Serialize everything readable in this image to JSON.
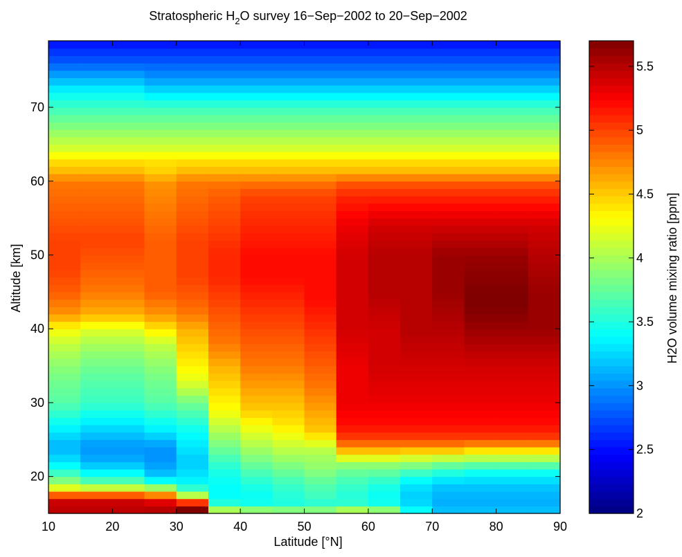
{
  "chart_data": {
    "type": "heatmap",
    "title_prefix": "Stratospheric H",
    "title_subscript": "2",
    "title_suffix": "O survey 16−Sep−2002 to 20−Sep−2002",
    "xlabel": "Latitude [°N]",
    "ylabel": "Altitude [km]",
    "colorbar_label": "H2O volume mixing ratio [ppm]",
    "colormap": "jet",
    "xlim": [
      10,
      90
    ],
    "ylim": [
      15,
      79
    ],
    "clim": [
      2.0,
      5.7
    ],
    "x_ticks": [
      10,
      20,
      30,
      40,
      50,
      60,
      70,
      80,
      90
    ],
    "y_ticks": [
      20,
      30,
      40,
      50,
      60,
      70
    ],
    "colorbar_ticks": [
      2,
      2.5,
      3,
      3.5,
      4,
      4.5,
      5,
      5.5
    ],
    "lat_bins": [
      [
        10,
        15
      ],
      [
        15,
        25
      ],
      [
        25,
        30
      ],
      [
        30,
        35
      ],
      [
        35,
        40
      ],
      [
        40,
        45
      ],
      [
        45,
        50
      ],
      [
        50,
        55
      ],
      [
        55,
        60
      ],
      [
        60,
        65
      ],
      [
        65,
        70
      ],
      [
        70,
        75
      ],
      [
        75,
        80
      ],
      [
        80,
        85
      ],
      [
        85,
        90
      ]
    ],
    "altitude_resolution_km": 1,
    "altitude_start_km": 15,
    "altitude_end_km": 79,
    "profiles_ppm": [
      {
        "altitudes": [
          15,
          17,
          18,
          19,
          20,
          22,
          24,
          26,
          28,
          30,
          33,
          35,
          38,
          40,
          42,
          45,
          48,
          52,
          56,
          60,
          61,
          63,
          64,
          66,
          68,
          70,
          72,
          74,
          76,
          78,
          79
        ],
        "values": [
          5.5,
          5.4,
          4.4,
          4.0,
          3.7,
          3.3,
          3.1,
          3.3,
          3.5,
          3.7,
          3.8,
          3.9,
          4.1,
          4.3,
          4.7,
          4.9,
          5.0,
          5.0,
          4.9,
          4.8,
          4.6,
          4.4,
          4.2,
          4.0,
          3.8,
          3.6,
          3.4,
          3.1,
          2.8,
          2.6,
          2.5
        ]
      },
      {
        "altitudes": [
          15,
          17,
          18,
          19,
          20,
          22,
          24,
          26,
          28,
          30,
          33,
          35,
          38,
          40,
          42,
          45,
          48,
          52,
          56,
          60,
          61,
          63,
          64,
          66,
          68,
          70,
          72,
          74,
          76,
          78,
          79
        ],
        "values": [
          5.5,
          5.4,
          4.4,
          3.8,
          3.5,
          3.1,
          3.0,
          3.2,
          3.4,
          3.6,
          3.7,
          3.8,
          4.0,
          4.2,
          4.6,
          4.8,
          4.9,
          5.0,
          4.9,
          4.8,
          4.6,
          4.4,
          4.2,
          4.0,
          3.8,
          3.6,
          3.4,
          3.1,
          2.8,
          2.6,
          2.5
        ]
      },
      {
        "altitudes": [
          15,
          16,
          17,
          18,
          19,
          20,
          22,
          24,
          26,
          28,
          30,
          33,
          35,
          38,
          40,
          42,
          45,
          48,
          52,
          56,
          60,
          61,
          63,
          64,
          66,
          68,
          70,
          72,
          74,
          76,
          78,
          79
        ],
        "values": [
          5.5,
          5.5,
          5.2,
          4.3,
          3.6,
          3.2,
          3.0,
          3.0,
          3.3,
          3.5,
          3.7,
          3.8,
          3.9,
          4.1,
          4.4,
          4.7,
          4.9,
          4.9,
          4.9,
          4.8,
          4.7,
          4.5,
          4.4,
          4.2,
          4.0,
          3.8,
          3.6,
          3.3,
          3.0,
          2.8,
          2.6,
          2.5
        ]
      },
      {
        "altitudes": [
          15,
          16,
          17,
          18,
          19,
          20,
          22,
          24,
          26,
          28,
          30,
          32,
          34,
          36,
          38,
          40,
          42,
          44,
          47,
          52,
          56,
          60,
          61,
          63,
          64,
          66,
          68,
          70,
          72,
          74,
          76,
          78,
          79
        ],
        "values": [
          5.7,
          5.7,
          4.4,
          3.7,
          3.4,
          3.3,
          3.2,
          3.3,
          3.4,
          3.6,
          3.8,
          4.1,
          4.3,
          4.4,
          4.5,
          4.6,
          4.8,
          4.9,
          5.0,
          5.0,
          4.9,
          4.8,
          4.6,
          4.4,
          4.2,
          4.0,
          3.8,
          3.6,
          3.3,
          3.0,
          2.8,
          2.6,
          2.5
        ]
      },
      {
        "altitudes": [
          15,
          16,
          17,
          19,
          21,
          23,
          25,
          27,
          29,
          31,
          33,
          35,
          38,
          41,
          44,
          47,
          50,
          54,
          58,
          60,
          61,
          63,
          64,
          66,
          68,
          70,
          72,
          74,
          76,
          78,
          79
        ],
        "values": [
          4.4,
          3.6,
          3.4,
          3.4,
          3.5,
          3.7,
          3.9,
          4.1,
          4.3,
          4.4,
          4.5,
          4.6,
          4.8,
          4.9,
          5.0,
          5.1,
          5.1,
          5.0,
          4.9,
          4.8,
          4.6,
          4.4,
          4.2,
          4.0,
          3.8,
          3.6,
          3.3,
          3.0,
          2.8,
          2.6,
          2.5
        ]
      },
      {
        "altitudes": [
          15,
          16,
          17,
          19,
          21,
          23,
          25,
          27,
          29,
          31,
          33,
          35,
          38,
          41,
          44,
          47,
          50,
          54,
          58,
          60,
          61,
          63,
          64,
          66,
          68,
          70,
          72,
          74,
          76,
          78,
          79
        ],
        "values": [
          4.3,
          3.5,
          3.4,
          3.5,
          3.7,
          3.9,
          4.1,
          4.3,
          4.5,
          4.6,
          4.7,
          4.8,
          4.9,
          5.0,
          5.1,
          5.2,
          5.2,
          5.1,
          5.0,
          4.8,
          4.6,
          4.4,
          4.2,
          4.0,
          3.8,
          3.6,
          3.3,
          3.0,
          2.8,
          2.6,
          2.5
        ]
      },
      {
        "altitudes": [
          15,
          16,
          17,
          19,
          21,
          23,
          25,
          27,
          29,
          31,
          33,
          35,
          38,
          41,
          44,
          47,
          50,
          54,
          58,
          60,
          61,
          63,
          64,
          66,
          68,
          70,
          72,
          74,
          76,
          78,
          79
        ],
        "values": [
          4.2,
          3.5,
          3.5,
          3.6,
          3.8,
          4.0,
          4.2,
          4.4,
          4.5,
          4.6,
          4.7,
          4.8,
          4.9,
          5.0,
          5.1,
          5.2,
          5.2,
          5.1,
          5.0,
          4.8,
          4.6,
          4.4,
          4.2,
          4.0,
          3.8,
          3.6,
          3.3,
          3.0,
          2.8,
          2.6,
          2.5
        ]
      },
      {
        "altitudes": [
          15,
          16,
          17,
          19,
          21,
          23,
          24,
          25,
          26,
          28,
          30,
          32,
          35,
          38,
          41,
          44,
          47,
          50,
          54,
          58,
          60,
          61,
          63,
          64,
          66,
          68,
          70,
          72,
          74,
          76,
          78,
          79
        ],
        "values": [
          4.2,
          3.5,
          3.6,
          3.7,
          3.9,
          4.0,
          4.1,
          4.3,
          4.5,
          4.6,
          4.7,
          4.8,
          4.9,
          5.0,
          5.1,
          5.2,
          5.2,
          5.2,
          5.1,
          5.0,
          4.8,
          4.6,
          4.4,
          4.2,
          4.0,
          3.8,
          3.6,
          3.3,
          3.0,
          2.8,
          2.6,
          2.5
        ]
      },
      {
        "altitudes": [
          15,
          16,
          17,
          19,
          21,
          22,
          23,
          24,
          25,
          27,
          30,
          35,
          40,
          45,
          50,
          54,
          58,
          60,
          61,
          63,
          64,
          66,
          68,
          70,
          72,
          74,
          76,
          78,
          79
        ],
        "values": [
          4.4,
          3.6,
          3.5,
          3.6,
          3.8,
          4.0,
          4.4,
          4.7,
          5.0,
          5.2,
          5.3,
          5.3,
          5.4,
          5.4,
          5.4,
          5.3,
          5.1,
          4.9,
          4.6,
          4.4,
          4.2,
          4.0,
          3.8,
          3.6,
          3.3,
          3.0,
          2.8,
          2.6,
          2.5
        ]
      },
      {
        "altitudes": [
          15,
          16,
          17,
          19,
          21,
          22,
          23,
          24,
          25,
          27,
          30,
          35,
          40,
          45,
          50,
          54,
          58,
          60,
          61,
          63,
          64,
          66,
          68,
          70,
          72,
          74,
          76,
          78,
          79
        ],
        "values": [
          4.3,
          3.5,
          3.4,
          3.5,
          3.8,
          4.0,
          4.4,
          4.7,
          5.0,
          5.2,
          5.3,
          5.4,
          5.4,
          5.5,
          5.5,
          5.4,
          5.1,
          4.9,
          4.6,
          4.4,
          4.2,
          4.0,
          3.8,
          3.6,
          3.3,
          3.0,
          2.8,
          2.6,
          2.5
        ]
      },
      {
        "altitudes": [
          15,
          16,
          17,
          19,
          21,
          22,
          23,
          24,
          25,
          27,
          30,
          35,
          40,
          45,
          50,
          54,
          58,
          60,
          61,
          63,
          64,
          66,
          68,
          70,
          72,
          74,
          76,
          78,
          79
        ],
        "values": [
          3.5,
          3.3,
          3.2,
          3.3,
          3.7,
          4.0,
          4.3,
          4.7,
          5.0,
          5.2,
          5.3,
          5.4,
          5.5,
          5.5,
          5.5,
          5.4,
          5.1,
          4.9,
          4.6,
          4.4,
          4.2,
          4.0,
          3.8,
          3.6,
          3.3,
          3.0,
          2.8,
          2.6,
          2.5
        ]
      },
      {
        "altitudes": [
          15,
          16,
          17,
          19,
          21,
          22,
          23,
          24,
          25,
          27,
          30,
          35,
          40,
          45,
          50,
          54,
          58,
          60,
          61,
          63,
          64,
          66,
          68,
          70,
          72,
          74,
          76,
          78,
          79
        ],
        "values": [
          3.2,
          3.1,
          3.1,
          3.2,
          3.6,
          3.9,
          4.3,
          4.7,
          5.0,
          5.2,
          5.3,
          5.4,
          5.5,
          5.6,
          5.6,
          5.4,
          5.1,
          4.9,
          4.6,
          4.4,
          4.2,
          4.0,
          3.8,
          3.6,
          3.3,
          3.0,
          2.8,
          2.6,
          2.5
        ]
      },
      {
        "altitudes": [
          15,
          16,
          17,
          19,
          21,
          22,
          23,
          24,
          25,
          27,
          30,
          35,
          40,
          43,
          45,
          50,
          54,
          58,
          60,
          61,
          63,
          64,
          66,
          68,
          70,
          72,
          74,
          76,
          78,
          79
        ],
        "values": [
          3.2,
          3.1,
          3.1,
          3.2,
          3.5,
          3.9,
          4.2,
          4.6,
          5.0,
          5.2,
          5.3,
          5.4,
          5.6,
          5.7,
          5.7,
          5.6,
          5.4,
          5.1,
          4.9,
          4.6,
          4.4,
          4.2,
          4.0,
          3.8,
          3.6,
          3.3,
          3.0,
          2.8,
          2.6,
          2.5
        ]
      },
      {
        "altitudes": [
          15,
          16,
          17,
          19,
          21,
          22,
          23,
          24,
          25,
          27,
          30,
          35,
          40,
          43,
          45,
          50,
          54,
          58,
          60,
          61,
          63,
          64,
          66,
          68,
          70,
          72,
          74,
          76,
          78,
          79
        ],
        "values": [
          3.2,
          3.1,
          3.1,
          3.2,
          3.5,
          3.9,
          4.2,
          4.6,
          5.0,
          5.2,
          5.3,
          5.4,
          5.6,
          5.7,
          5.7,
          5.6,
          5.4,
          5.1,
          4.9,
          4.6,
          4.4,
          4.2,
          4.0,
          3.8,
          3.6,
          3.3,
          3.0,
          2.8,
          2.6,
          2.5
        ]
      },
      {
        "altitudes": [
          15,
          16,
          17,
          19,
          21,
          22,
          23,
          24,
          25,
          27,
          30,
          35,
          40,
          43,
          45,
          50,
          54,
          58,
          60,
          61,
          63,
          64,
          66,
          68,
          70,
          72,
          74,
          76,
          78,
          79
        ],
        "values": [
          3.2,
          3.1,
          3.1,
          3.2,
          3.5,
          3.9,
          4.2,
          4.6,
          5.0,
          5.2,
          5.3,
          5.4,
          5.6,
          5.6,
          5.6,
          5.5,
          5.4,
          5.1,
          4.9,
          4.6,
          4.4,
          4.2,
          4.0,
          3.8,
          3.6,
          3.3,
          3.0,
          2.8,
          2.6,
          2.5
        ]
      }
    ]
  }
}
